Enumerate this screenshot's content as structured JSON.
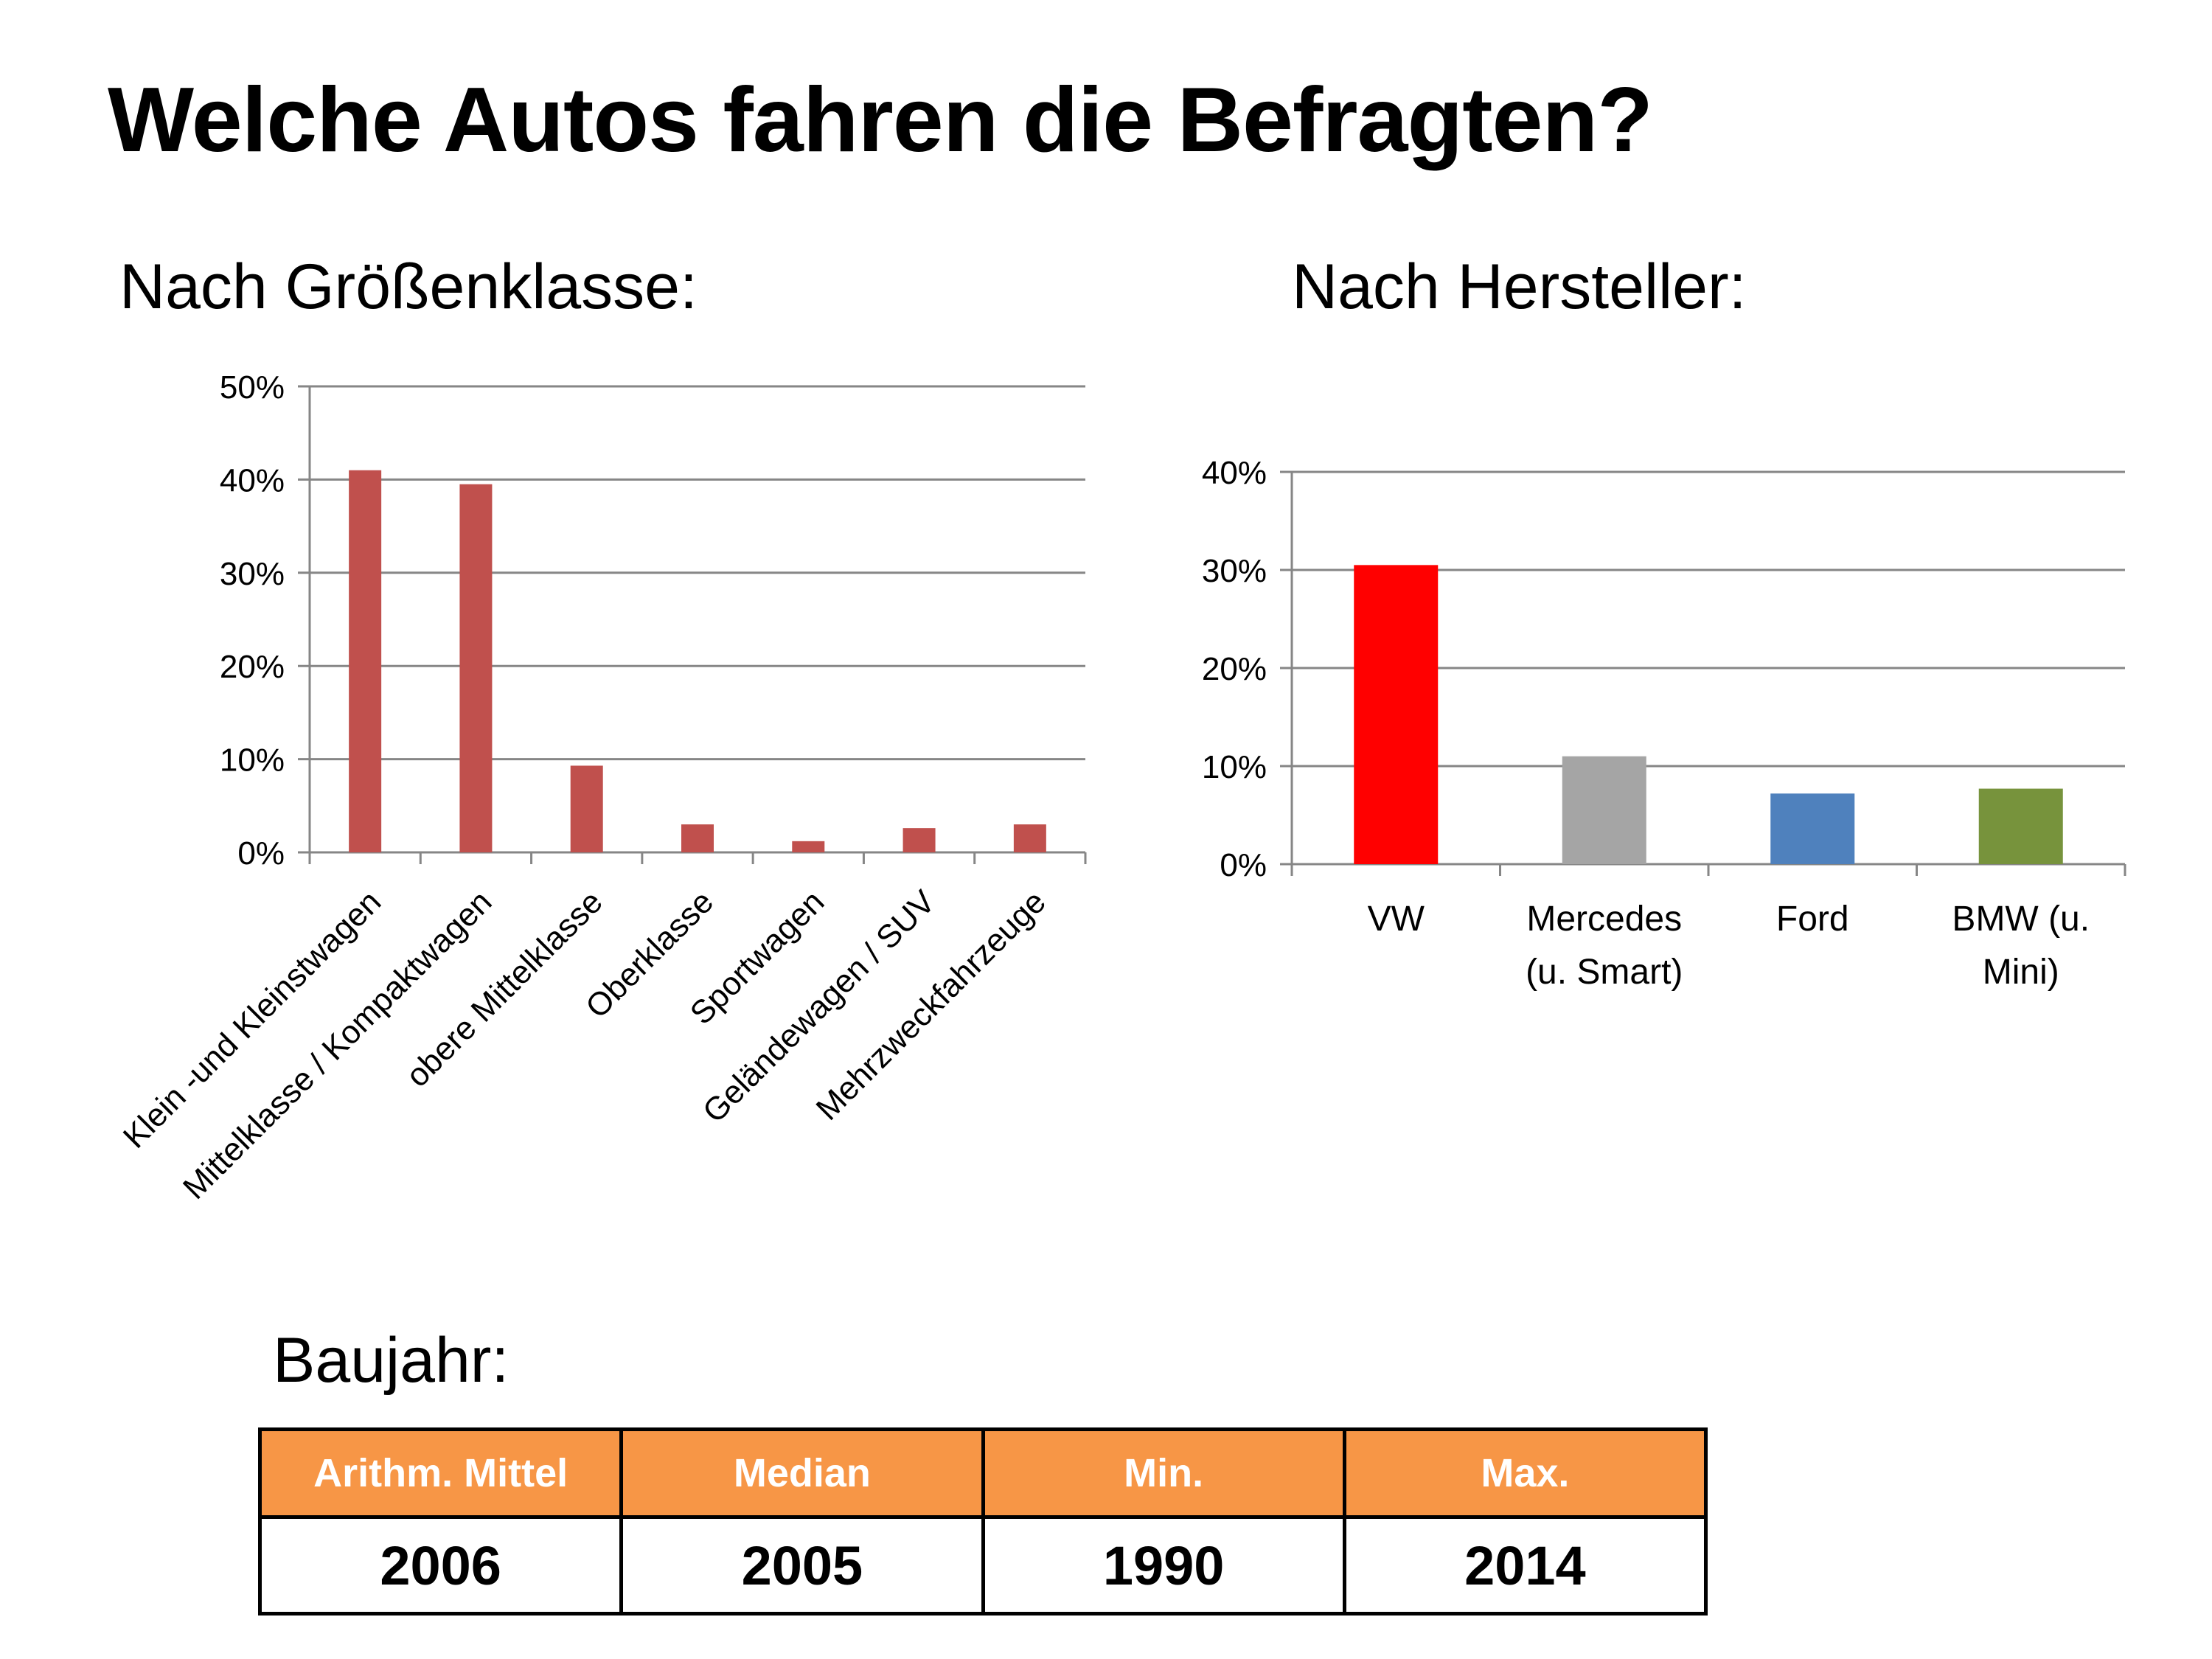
{
  "page": {
    "title": "Welche Autos fahren die Befragten?",
    "subtitle_size": "Nach Größenklasse:",
    "subtitle_maker": "Nach Hersteller:",
    "subtitle_year": "Baujahr:"
  },
  "chart_data": [
    {
      "type": "bar",
      "title": "",
      "categories": [
        "Klein -und Kleinstwagen",
        "Mittelklasse / Kompaktwagen",
        "obere Mittelklasse",
        "Oberklasse",
        "Sportwagen",
        "Geländewagen / SUV",
        "Mehrzweckfahrzeuge"
      ],
      "values": [
        41,
        39.5,
        9.3,
        3,
        1.2,
        2.6,
        3
      ],
      "ylim": [
        0,
        50
      ],
      "yticks": [
        "0%",
        "10%",
        "20%",
        "30%",
        "40%",
        "50%"
      ],
      "xlabel": "",
      "ylabel": "",
      "grid": true,
      "legend": "none",
      "colors": [
        "#c0504d"
      ]
    },
    {
      "type": "bar",
      "title": "",
      "categories": [
        [
          "VW"
        ],
        [
          "Mercedes",
          "(u. Smart)"
        ],
        [
          "Ford"
        ],
        [
          "BMW (u.",
          "Mini)"
        ]
      ],
      "values": [
        30.5,
        11,
        7.2,
        7.7
      ],
      "ylim": [
        0,
        40
      ],
      "yticks": [
        "0%",
        "10%",
        "20%",
        "30%",
        "40%"
      ],
      "xlabel": "",
      "ylabel": "",
      "grid": true,
      "legend": "none",
      "colors": [
        "#ff0000",
        "#a5a5a5",
        "#4f81bd",
        "#77933c"
      ]
    }
  ],
  "table": {
    "headers": [
      "Arithm. Mittel",
      "Median",
      "Min.",
      "Max."
    ],
    "values": [
      "2006",
      "2005",
      "1990",
      "2014"
    ],
    "header_color": "#f79646"
  }
}
